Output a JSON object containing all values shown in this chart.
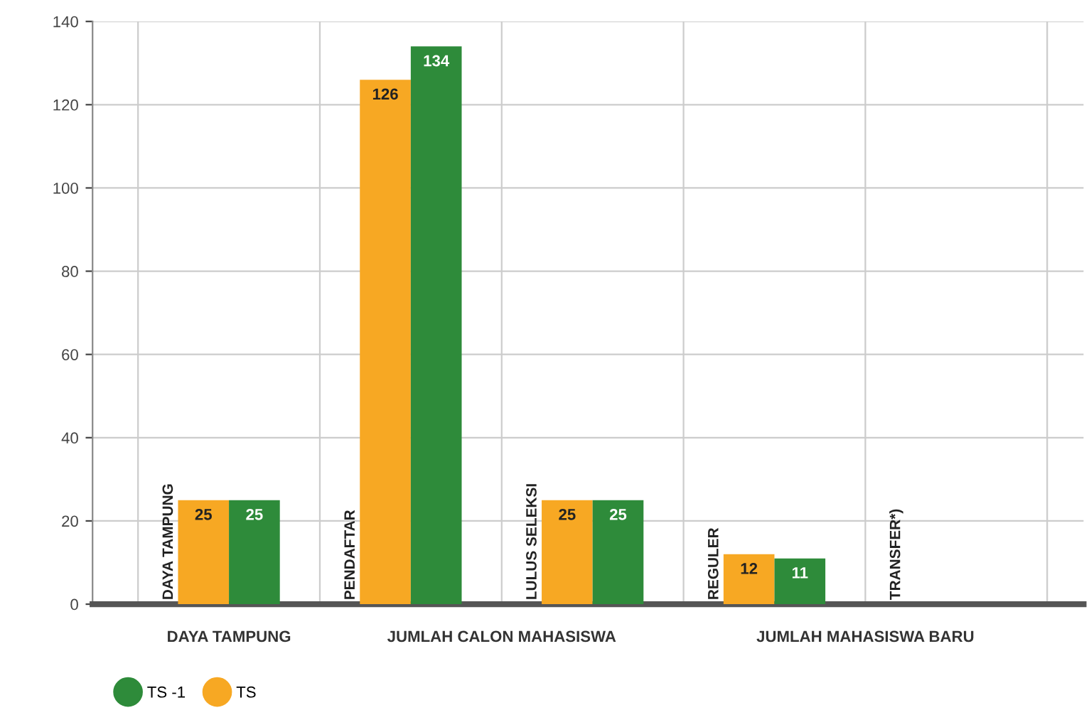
{
  "chart_data": {
    "type": "bar",
    "categories": [
      "DAYA TAMPUNG",
      "PENDAFTAR",
      "LULUS SELEKSI",
      "REGULER",
      "TRANSFER*)"
    ],
    "series": [
      {
        "name": "TS",
        "color": "#f7a823",
        "values": [
          25,
          126,
          25,
          12,
          null
        ]
      },
      {
        "name": "TS -1",
        "color": "#2e8b3a",
        "values": [
          25,
          134,
          25,
          11,
          null
        ]
      }
    ],
    "ylim": [
      0,
      140
    ],
    "yticks": [
      0,
      20,
      40,
      60,
      80,
      100,
      120,
      140
    ],
    "grid": true,
    "data_labels": true,
    "legend": "bottom left",
    "annotations": [
      "DAYA TAMPUNG",
      "JUMLAH CALON MAHASISWA",
      "JUMLAH MAHASISWA BARU"
    ]
  }
}
